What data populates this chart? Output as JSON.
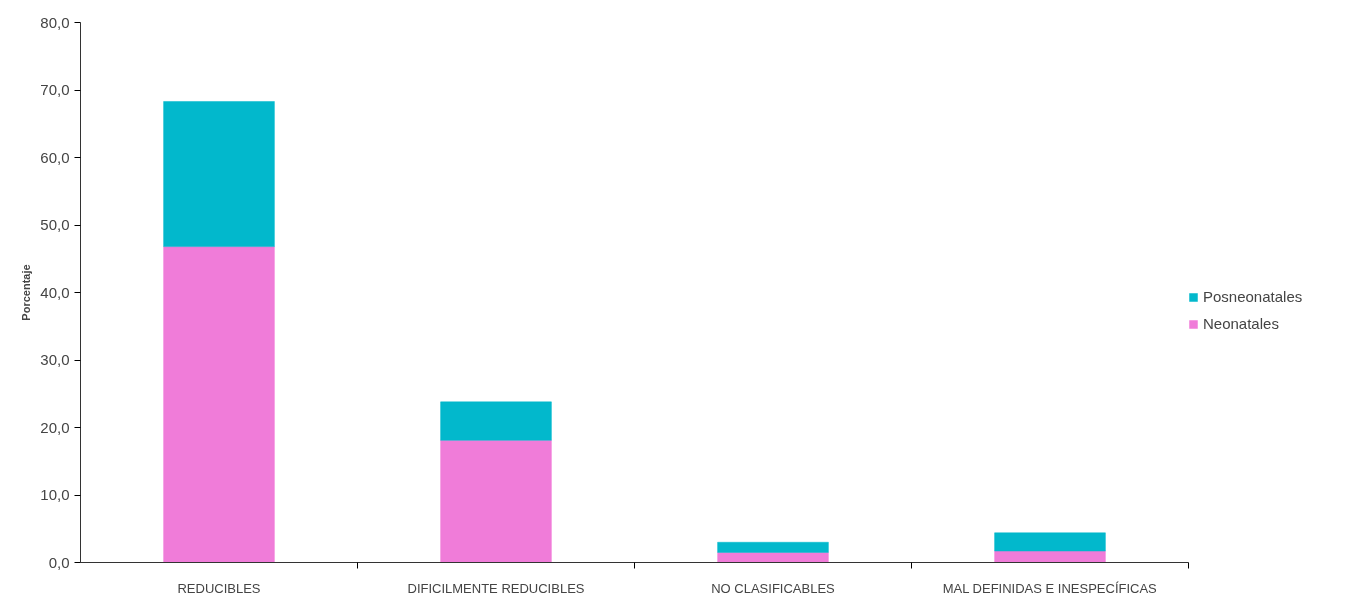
{
  "chart_data": {
    "type": "bar",
    "ylabel": "Porcentaje",
    "stacked": true,
    "categories": [
      "REDUCIBLES",
      "DIFICILMENTE REDUCIBLES",
      "NO CLASIFICABLES",
      "MAL DEFINIDAS E INESPECÍFICAS"
    ],
    "series": [
      {
        "name": "Neonatales",
        "color": "#f07cd9",
        "values": [
          46.8,
          18.1,
          1.5,
          1.7
        ]
      },
      {
        "name": "Posneonatales",
        "color": "#02b8cc",
        "values": [
          21.5,
          5.7,
          1.5,
          2.7
        ]
      }
    ],
    "ylim": [
      0,
      80
    ],
    "yticks": [
      {
        "value": 0,
        "label": "0,0"
      },
      {
        "value": 10,
        "label": "10,0"
      },
      {
        "value": 20,
        "label": "20,0"
      },
      {
        "value": 30,
        "label": "30,0"
      },
      {
        "value": 40,
        "label": "40,0"
      },
      {
        "value": 50,
        "label": "50,0"
      },
      {
        "value": 60,
        "label": "60,0"
      },
      {
        "value": 70,
        "label": "70,0"
      },
      {
        "value": 80,
        "label": "80,0"
      }
    ],
    "grid": false,
    "legend": "right"
  }
}
